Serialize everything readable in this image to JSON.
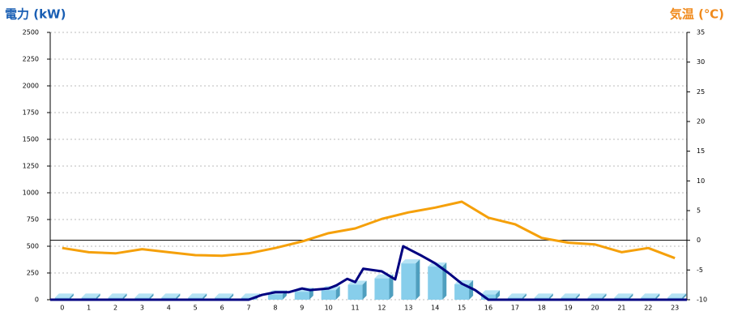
{
  "chart_data": {
    "type": "combo",
    "title": "電力 (kW)",
    "title_right": "気温 (℃)",
    "title_color": "#1a5fb4",
    "title_right_color": "#f08a1c",
    "xlim": [
      -0.45,
      23.45
    ],
    "xticks": [
      0,
      1,
      2,
      3,
      4,
      5,
      6,
      7,
      8,
      9,
      10,
      11,
      12,
      13,
      14,
      15,
      16,
      17,
      18,
      19,
      20,
      21,
      22,
      23
    ],
    "ylim": [
      0,
      2500
    ],
    "yticks": [
      0,
      250,
      500,
      750,
      1000,
      1250,
      1500,
      1750,
      2000,
      2250,
      2500
    ],
    "y2lim": [
      -10,
      35
    ],
    "y2ticks": [
      -10,
      -5,
      0,
      5,
      10,
      15,
      20,
      25,
      30,
      35
    ],
    "grid": true,
    "series": [
      {
        "type": "bar",
        "color": "#87ceeb",
        "x": [
          0,
          1,
          2,
          3,
          4,
          5,
          6,
          7,
          8,
          9,
          10,
          11,
          12,
          13,
          14,
          15,
          16,
          17,
          18,
          19,
          20,
          21,
          22,
          23
        ],
        "values": [
          20,
          20,
          20,
          20,
          20,
          20,
          20,
          20,
          50,
          75,
          90,
          140,
          200,
          340,
          310,
          145,
          50,
          20,
          20,
          20,
          20,
          20,
          20,
          20
        ]
      },
      {
        "type": "line",
        "color": "#000080",
        "x": [
          -0.45,
          7,
          7.5,
          8,
          8.5,
          9,
          9.3,
          10,
          10.3,
          10.7,
          11,
          11.3,
          12,
          12.5,
          12.8,
          13.5,
          14,
          14.5,
          15,
          15.5,
          16,
          23.45
        ],
        "values": [
          0,
          0,
          45,
          70,
          70,
          105,
          90,
          105,
          135,
          195,
          165,
          290,
          265,
          190,
          500,
          410,
          340,
          250,
          150,
          90,
          0,
          0
        ]
      },
      {
        "type": "line",
        "axis": "y2",
        "color": "#f5a00a",
        "x": [
          0,
          1,
          2,
          3,
          4,
          5,
          6,
          7,
          8,
          9,
          10,
          11,
          12,
          13,
          14,
          15,
          16,
          17,
          18,
          19,
          20,
          21,
          22,
          23
        ],
        "values": [
          -1.3,
          -2.0,
          -2.2,
          -1.5,
          -2.0,
          -2.5,
          -2.6,
          -2.2,
          -1.3,
          -0.2,
          1.2,
          2.0,
          3.6,
          4.7,
          5.5,
          6.5,
          3.8,
          2.7,
          0.4,
          -0.4,
          -0.7,
          -2.0,
          -1.3,
          -3.0
        ]
      }
    ]
  }
}
